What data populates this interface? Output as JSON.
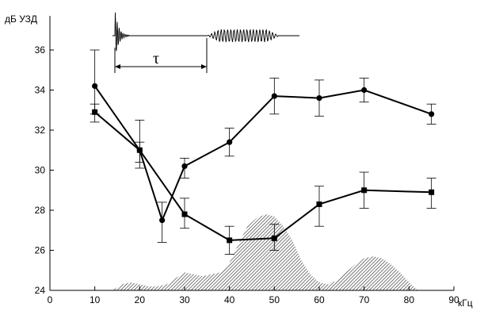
{
  "chart_data": {
    "type": "line",
    "title": "",
    "xlabel": "кГц",
    "ylabel": "дБ УЗД",
    "xlim": [
      0,
      90
    ],
    "ylim": [
      24,
      36
    ],
    "x_ticks": [
      0,
      10,
      20,
      30,
      40,
      50,
      60,
      70,
      80,
      90
    ],
    "y_ticks": [
      24,
      26,
      28,
      30,
      32,
      34,
      36
    ],
    "grid": false,
    "legend": "none",
    "series": [
      {
        "marker": "circle",
        "x": [
          10,
          20,
          25,
          30,
          40,
          50,
          60,
          70,
          85
        ],
        "y": [
          34.2,
          31.0,
          27.5,
          30.2,
          31.4,
          33.7,
          33.6,
          34.0,
          32.8
        ],
        "err_low": [
          32.8,
          30.1,
          26.4,
          29.6,
          30.7,
          32.8,
          32.7,
          33.4,
          32.3
        ],
        "err_high": [
          36.0,
          32.5,
          28.4,
          30.6,
          32.1,
          34.6,
          34.5,
          34.6,
          33.3
        ]
      },
      {
        "marker": "square",
        "x": [
          10,
          20,
          30,
          40,
          50,
          60,
          70,
          85
        ],
        "y": [
          32.9,
          31.0,
          27.8,
          26.5,
          26.6,
          28.3,
          29.0,
          28.9
        ],
        "err_low": [
          32.4,
          30.4,
          27.1,
          25.8,
          26.0,
          27.2,
          28.1,
          28.1
        ],
        "err_high": [
          33.3,
          31.4,
          28.6,
          27.2,
          27.3,
          29.2,
          29.9,
          29.6
        ]
      }
    ],
    "connector": {
      "x": [
        20,
        30
      ],
      "y": [
        31.0,
        27.8
      ]
    },
    "shaded_spectrum": {
      "x": [
        14,
        16,
        18,
        20,
        22,
        24,
        26,
        27,
        28,
        30,
        32,
        34,
        36,
        38,
        40,
        42,
        44,
        46,
        48,
        50,
        52,
        54,
        56,
        58,
        60,
        62,
        64,
        66,
        68,
        70,
        72,
        74,
        76,
        78,
        80,
        82
      ],
      "y": [
        24.0,
        24.3,
        24.4,
        24.3,
        24.2,
        24.2,
        24.3,
        24.4,
        24.6,
        24.9,
        24.8,
        24.7,
        24.8,
        24.9,
        25.4,
        26.3,
        27.2,
        27.6,
        27.8,
        27.7,
        27.2,
        26.5,
        25.5,
        24.8,
        24.4,
        24.3,
        24.5,
        24.9,
        25.3,
        25.6,
        25.7,
        25.6,
        25.3,
        24.9,
        24.4,
        24.0
      ]
    },
    "inset": {
      "annotation": "τ"
    }
  }
}
